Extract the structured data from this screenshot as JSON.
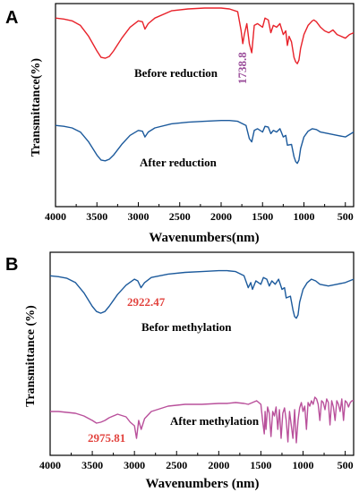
{
  "colors": {
    "red": "#e8222a",
    "blue": "#1c5a9c",
    "magenta": "#b9509b",
    "annot_red": "#e2433e",
    "annot_purple": "#9a4d9a"
  },
  "chart_data": [
    {
      "type": "line",
      "panel": "A",
      "xlabel": "Wavenumbers(nm)",
      "ylabel": "Transmittance(%)",
      "xlim": [
        4000,
        400
      ],
      "xticks": [
        "4000",
        "3500",
        "3000",
        "2500",
        "2000",
        "1500",
        "1000",
        "500"
      ],
      "series": [
        {
          "name": "Before reduction",
          "color": "#e8222a",
          "x": [
            4000,
            3900,
            3800,
            3700,
            3600,
            3500,
            3450,
            3400,
            3350,
            3300,
            3200,
            3100,
            3000,
            2950,
            2920,
            2880,
            2800,
            2600,
            2400,
            2200,
            2000,
            1900,
            1800,
            1760,
            1738,
            1720,
            1690,
            1660,
            1630,
            1600,
            1560,
            1500,
            1470,
            1430,
            1400,
            1370,
            1330,
            1290,
            1250,
            1220,
            1200,
            1180,
            1150,
            1120,
            1100,
            1080,
            1060,
            1040,
            1000,
            950,
            900,
            880,
            850,
            800,
            750,
            700,
            650,
            600,
            550,
            500,
            450,
            400
          ],
          "y": [
            88,
            87,
            85,
            80,
            68,
            52,
            45,
            44,
            46,
            52,
            66,
            78,
            85,
            84,
            76,
            82,
            88,
            96,
            98,
            99,
            99,
            98,
            95,
            75,
            60,
            70,
            82,
            60,
            50,
            80,
            82,
            78,
            88,
            86,
            72,
            80,
            78,
            82,
            70,
            74,
            58,
            68,
            62,
            45,
            40,
            38,
            42,
            55,
            70,
            80,
            85,
            86,
            84,
            78,
            74,
            72,
            75,
            70,
            68,
            66,
            70,
            72
          ]
        },
        {
          "name": "After reduction",
          "color": "#1c5a9c",
          "x": [
            4000,
            3900,
            3800,
            3700,
            3600,
            3500,
            3450,
            3400,
            3350,
            3300,
            3200,
            3100,
            3000,
            2950,
            2920,
            2880,
            2800,
            2600,
            2400,
            2200,
            2000,
            1900,
            1800,
            1700,
            1660,
            1630,
            1600,
            1560,
            1500,
            1470,
            1430,
            1400,
            1370,
            1330,
            1290,
            1250,
            1220,
            1200,
            1150,
            1120,
            1100,
            1080,
            1060,
            1040,
            1000,
            950,
            900,
            850,
            800,
            700,
            600,
            500,
            450,
            400
          ],
          "y": [
            78,
            77,
            75,
            70,
            58,
            42,
            36,
            35,
            37,
            42,
            55,
            66,
            72,
            71,
            64,
            70,
            75,
            80,
            82,
            83,
            84,
            84,
            83,
            78,
            62,
            58,
            72,
            74,
            70,
            77,
            76,
            68,
            72,
            70,
            74,
            64,
            66,
            54,
            55,
            40,
            34,
            32,
            36,
            50,
            64,
            71,
            74,
            73,
            70,
            68,
            66,
            64,
            67,
            70
          ]
        }
      ],
      "annotations": [
        {
          "text": "1738.8",
          "x": 1738.8,
          "color": "#9a4d9a"
        }
      ]
    },
    {
      "type": "line",
      "panel": "B",
      "xlabel": "Wavenumbers (nm)",
      "ylabel": "Transmittance (%)",
      "xlim": [
        4000,
        400
      ],
      "xticks": [
        "4000",
        "3500",
        "3000",
        "2500",
        "2000",
        "1500",
        "1000",
        "500"
      ],
      "series": [
        {
          "name": "Befor methylation",
          "color": "#1c5a9c",
          "x": [
            4000,
            3900,
            3800,
            3700,
            3600,
            3500,
            3450,
            3400,
            3350,
            3300,
            3200,
            3100,
            3000,
            2960,
            2922,
            2880,
            2800,
            2600,
            2400,
            2200,
            2000,
            1900,
            1800,
            1700,
            1650,
            1620,
            1600,
            1560,
            1500,
            1470,
            1430,
            1400,
            1370,
            1330,
            1290,
            1250,
            1220,
            1200,
            1150,
            1120,
            1100,
            1080,
            1060,
            1040,
            1000,
            950,
            900,
            850,
            800,
            700,
            600,
            500,
            450,
            400
          ],
          "y": [
            86,
            85,
            83,
            78,
            66,
            50,
            44,
            42,
            44,
            50,
            64,
            75,
            82,
            80,
            72,
            78,
            84,
            88,
            90,
            91,
            92,
            92,
            91,
            86,
            72,
            78,
            70,
            80,
            76,
            84,
            82,
            74,
            80,
            76,
            82,
            70,
            72,
            60,
            62,
            46,
            38,
            36,
            40,
            55,
            70,
            78,
            82,
            80,
            76,
            74,
            76,
            78,
            80,
            82
          ]
        },
        {
          "name": "After methylation",
          "color": "#b9509b",
          "x": [
            4000,
            3900,
            3800,
            3700,
            3600,
            3500,
            3450,
            3400,
            3350,
            3300,
            3200,
            3100,
            3050,
            3000,
            2975,
            2950,
            2920,
            2880,
            2850,
            2800,
            2600,
            2400,
            2200,
            2000,
            1900,
            1800,
            1700,
            1650,
            1600,
            1550,
            1500,
            1480,
            1460,
            1450,
            1440,
            1420,
            1400,
            1380,
            1360,
            1340,
            1320,
            1300,
            1280,
            1260,
            1240,
            1220,
            1200,
            1180,
            1160,
            1140,
            1120,
            1100,
            1080,
            1060,
            1040,
            1020,
            1000,
            980,
            960,
            940,
            920,
            900,
            880,
            860,
            840,
            820,
            800,
            780,
            760,
            740,
            720,
            700,
            680,
            660,
            640,
            620,
            600,
            580,
            560,
            540,
            520,
            500,
            480,
            460,
            440,
            420,
            400
          ],
          "y": [
            40,
            40,
            39,
            38,
            35,
            30,
            27,
            28,
            30,
            33,
            37,
            34,
            28,
            24,
            10,
            30,
            20,
            32,
            35,
            40,
            46,
            48,
            48,
            49,
            49,
            50,
            49,
            48,
            50,
            52,
            48,
            30,
            15,
            40,
            20,
            45,
            38,
            12,
            40,
            35,
            45,
            20,
            42,
            10,
            38,
            44,
            30,
            6,
            40,
            25,
            10,
            42,
            5,
            30,
            44,
            50,
            40,
            46,
            20,
            50,
            46,
            52,
            48,
            56,
            54,
            48,
            30,
            52,
            50,
            42,
            54,
            50,
            25,
            52,
            45,
            30,
            52,
            48,
            40,
            54,
            30,
            52,
            50,
            45,
            50,
            52,
            52
          ]
        }
      ],
      "annotations": [
        {
          "text": "2922.47",
          "x": 2922.47,
          "color": "#e2433e"
        },
        {
          "text": "2975.81",
          "x": 2975.81,
          "color": "#e2433e"
        }
      ]
    }
  ]
}
